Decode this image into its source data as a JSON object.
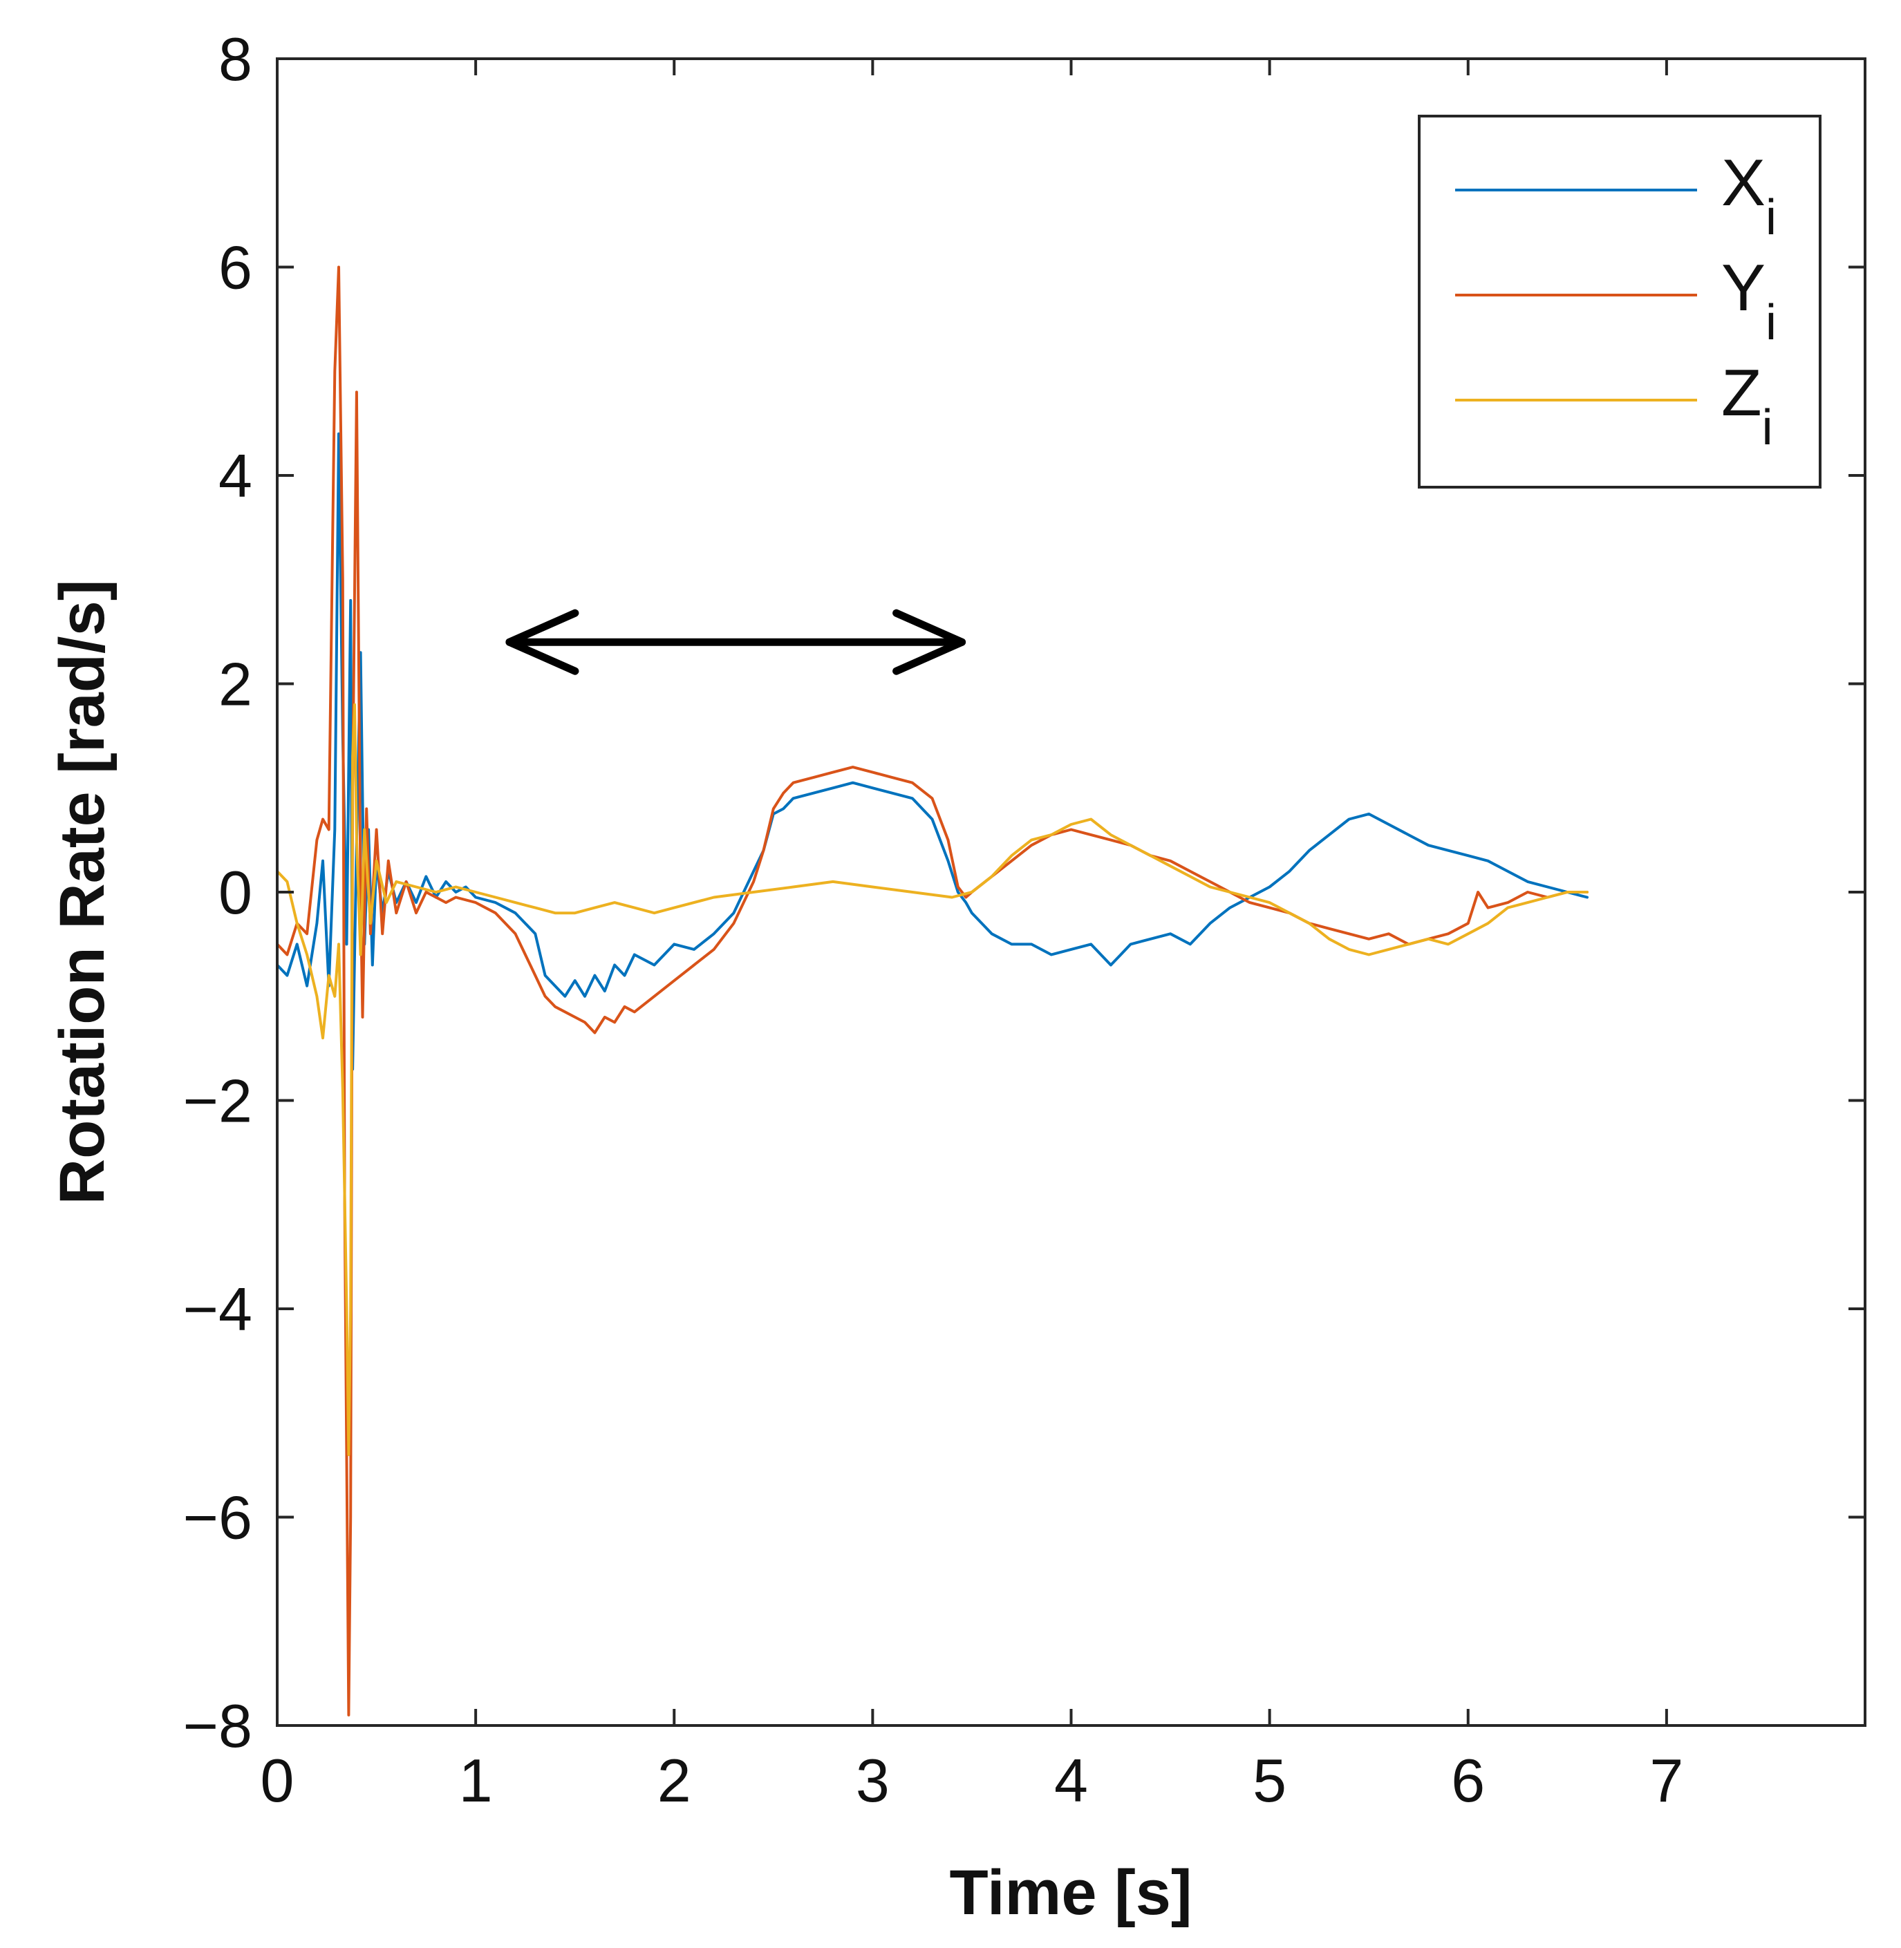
{
  "chart_data": {
    "type": "line",
    "title": "",
    "xlabel": "Time [s]",
    "ylabel": "Rotation Rate [rad/s]",
    "xlim": [
      0,
      8
    ],
    "ylim": [
      -8,
      8
    ],
    "xticks": [
      0,
      1,
      2,
      3,
      4,
      5,
      6,
      7
    ],
    "xtick_labels": [
      "0",
      "1",
      "2",
      "3",
      "4",
      "5",
      "6",
      "7"
    ],
    "yticks": [
      -8,
      -6,
      -4,
      -2,
      0,
      2,
      4,
      6,
      8
    ],
    "ytick_labels": [
      "−8",
      "−6",
      "−4",
      "−2",
      "0",
      "2",
      "4",
      "6",
      "8"
    ],
    "grid": false,
    "legend_position": "top-right",
    "annotation": {
      "type": "double-arrow",
      "x_start": 1.17,
      "x_end": 3.45,
      "y": 2.4,
      "color": "#000000"
    },
    "series": [
      {
        "name": "X",
        "subscript": "i",
        "color": "#0072BD",
        "x": [
          0,
          0.05,
          0.1,
          0.15,
          0.2,
          0.23,
          0.26,
          0.29,
          0.31,
          0.33,
          0.35,
          0.37,
          0.38,
          0.4,
          0.42,
          0.44,
          0.46,
          0.48,
          0.5,
          0.53,
          0.56,
          0.6,
          0.65,
          0.7,
          0.75,
          0.8,
          0.85,
          0.9,
          0.95,
          1.0,
          1.1,
          1.2,
          1.3,
          1.35,
          1.4,
          1.45,
          1.5,
          1.55,
          1.6,
          1.65,
          1.7,
          1.75,
          1.8,
          1.9,
          2.0,
          2.1,
          2.2,
          2.3,
          2.4,
          2.45,
          2.5,
          2.55,
          2.6,
          2.7,
          2.8,
          2.9,
          3.0,
          3.1,
          3.2,
          3.3,
          3.38,
          3.43,
          3.47,
          3.5,
          3.6,
          3.7,
          3.8,
          3.9,
          4.0,
          4.1,
          4.2,
          4.25,
          4.3,
          4.4,
          4.5,
          4.6,
          4.7,
          4.8,
          4.9,
          5.0,
          5.1,
          5.2,
          5.3,
          5.4,
          5.5,
          5.6,
          5.7,
          5.8,
          5.9,
          6.0,
          6.1,
          6.2,
          6.3,
          6.4,
          6.5,
          6.6
        ],
        "y": [
          -0.7,
          -0.8,
          -0.5,
          -0.9,
          -0.3,
          0.3,
          -0.9,
          0.6,
          4.4,
          1.5,
          -0.5,
          2.8,
          -1.7,
          0.5,
          2.3,
          -0.5,
          0.6,
          -0.7,
          0.3,
          -0.2,
          0.2,
          -0.1,
          0.1,
          -0.1,
          0.15,
          -0.05,
          0.1,
          0.0,
          0.05,
          -0.05,
          -0.1,
          -0.2,
          -0.4,
          -0.8,
          -0.9,
          -1.0,
          -0.85,
          -1.0,
          -0.8,
          -0.95,
          -0.7,
          -0.8,
          -0.6,
          -0.7,
          -0.5,
          -0.55,
          -0.4,
          -0.2,
          0.2,
          0.4,
          0.75,
          0.8,
          0.9,
          0.95,
          1.0,
          1.05,
          1.0,
          0.95,
          0.9,
          0.7,
          0.3,
          0.0,
          -0.1,
          -0.2,
          -0.4,
          -0.5,
          -0.5,
          -0.6,
          -0.55,
          -0.5,
          -0.7,
          -0.6,
          -0.5,
          -0.45,
          -0.4,
          -0.5,
          -0.3,
          -0.15,
          -0.05,
          0.05,
          0.2,
          0.4,
          0.55,
          0.7,
          0.75,
          0.65,
          0.55,
          0.45,
          0.4,
          0.35,
          0.3,
          0.2,
          0.1,
          0.05,
          0.0,
          -0.05
        ]
      },
      {
        "name": "Y",
        "subscript": "i",
        "color": "#D95319",
        "x": [
          0,
          0.05,
          0.1,
          0.15,
          0.2,
          0.23,
          0.26,
          0.29,
          0.31,
          0.33,
          0.34,
          0.36,
          0.37,
          0.38,
          0.4,
          0.42,
          0.43,
          0.45,
          0.47,
          0.5,
          0.53,
          0.56,
          0.6,
          0.65,
          0.7,
          0.75,
          0.8,
          0.85,
          0.9,
          1.0,
          1.1,
          1.2,
          1.3,
          1.35,
          1.4,
          1.5,
          1.55,
          1.6,
          1.65,
          1.7,
          1.75,
          1.8,
          1.9,
          2.0,
          2.1,
          2.2,
          2.3,
          2.4,
          2.45,
          2.5,
          2.55,
          2.6,
          2.7,
          2.8,
          2.9,
          3.0,
          3.1,
          3.2,
          3.3,
          3.38,
          3.43,
          3.47,
          3.5,
          3.6,
          3.7,
          3.8,
          3.9,
          4.0,
          4.1,
          4.2,
          4.3,
          4.4,
          4.5,
          4.6,
          4.7,
          4.8,
          4.9,
          5.0,
          5.1,
          5.2,
          5.3,
          5.4,
          5.5,
          5.6,
          5.7,
          5.8,
          5.9,
          6.0,
          6.05,
          6.1,
          6.2,
          6.3,
          6.4,
          6.5,
          6.6
        ],
        "y": [
          -0.5,
          -0.6,
          -0.3,
          -0.4,
          0.5,
          0.7,
          0.6,
          5.0,
          6.0,
          3.0,
          -3.0,
          -7.9,
          -6.0,
          1.0,
          4.8,
          0.0,
          -1.2,
          0.8,
          -0.4,
          0.6,
          -0.4,
          0.3,
          -0.2,
          0.1,
          -0.2,
          0.0,
          -0.05,
          -0.1,
          -0.05,
          -0.1,
          -0.2,
          -0.4,
          -0.8,
          -1.0,
          -1.1,
          -1.2,
          -1.25,
          -1.35,
          -1.2,
          -1.25,
          -1.1,
          -1.15,
          -1.0,
          -0.85,
          -0.7,
          -0.55,
          -0.3,
          0.1,
          0.4,
          0.8,
          0.95,
          1.05,
          1.1,
          1.15,
          1.2,
          1.15,
          1.1,
          1.05,
          0.9,
          0.5,
          0.05,
          -0.05,
          0.0,
          0.15,
          0.3,
          0.45,
          0.55,
          0.6,
          0.55,
          0.5,
          0.45,
          0.35,
          0.3,
          0.2,
          0.1,
          0.0,
          -0.1,
          -0.15,
          -0.2,
          -0.3,
          -0.35,
          -0.4,
          -0.45,
          -0.4,
          -0.5,
          -0.45,
          -0.4,
          -0.3,
          0.0,
          -0.15,
          -0.1,
          0.0,
          -0.05,
          0.0,
          0.0
        ]
      },
      {
        "name": "Z",
        "subscript": "i",
        "color": "#EDB120",
        "x": [
          0,
          0.05,
          0.1,
          0.15,
          0.2,
          0.23,
          0.26,
          0.29,
          0.31,
          0.33,
          0.35,
          0.36,
          0.37,
          0.38,
          0.39,
          0.4,
          0.42,
          0.44,
          0.47,
          0.5,
          0.55,
          0.6,
          0.7,
          0.8,
          0.9,
          1.0,
          1.1,
          1.2,
          1.3,
          1.4,
          1.5,
          1.6,
          1.7,
          1.8,
          1.9,
          2.0,
          2.2,
          2.4,
          2.6,
          2.8,
          3.0,
          3.2,
          3.4,
          3.5,
          3.6,
          3.7,
          3.8,
          3.9,
          4.0,
          4.1,
          4.2,
          4.3,
          4.4,
          4.5,
          4.6,
          4.7,
          4.8,
          4.9,
          5.0,
          5.1,
          5.2,
          5.3,
          5.4,
          5.5,
          5.6,
          5.7,
          5.8,
          5.9,
          6.0,
          6.1,
          6.2,
          6.3,
          6.4,
          6.5,
          6.6
        ],
        "y": [
          0.2,
          0.1,
          -0.3,
          -0.6,
          -1.0,
          -1.4,
          -0.8,
          -1.0,
          -0.5,
          -1.9,
          -4.0,
          -5.4,
          -4.0,
          1.3,
          1.8,
          0.5,
          -0.6,
          0.6,
          -0.3,
          0.3,
          -0.1,
          0.1,
          0.05,
          0.0,
          0.05,
          0.0,
          -0.05,
          -0.1,
          -0.15,
          -0.2,
          -0.2,
          -0.15,
          -0.1,
          -0.15,
          -0.2,
          -0.15,
          -0.05,
          0.0,
          0.05,
          0.1,
          0.05,
          0.0,
          -0.05,
          0.0,
          0.15,
          0.35,
          0.5,
          0.55,
          0.65,
          0.7,
          0.55,
          0.45,
          0.35,
          0.25,
          0.15,
          0.05,
          0.0,
          -0.05,
          -0.1,
          -0.2,
          -0.3,
          -0.45,
          -0.55,
          -0.6,
          -0.55,
          -0.5,
          -0.45,
          -0.5,
          -0.4,
          -0.3,
          -0.15,
          -0.1,
          -0.05,
          0.0,
          0.0
        ]
      }
    ]
  }
}
